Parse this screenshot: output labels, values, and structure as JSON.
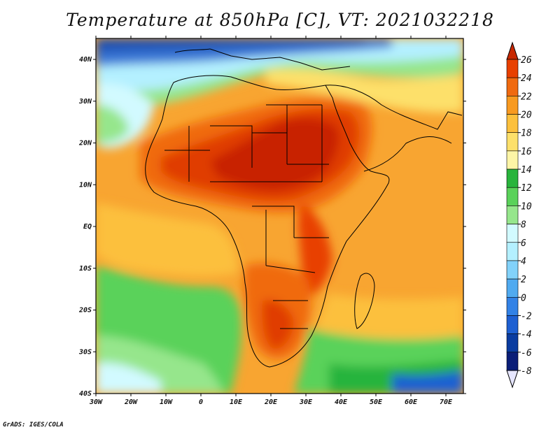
{
  "title": "Temperature at 850hPa [C], VT: 2021032218",
  "credit": "GrADS: IGES/COLA",
  "map": {
    "lon_labels": [
      "30W",
      "20W",
      "10W",
      "0",
      "10E",
      "20E",
      "30E",
      "40E",
      "50E",
      "60E",
      "70E"
    ],
    "lat_labels": [
      "40N",
      "30N",
      "20N",
      "10N",
      "EQ",
      "10S",
      "20S",
      "30S",
      "40S"
    ]
  },
  "colorbar": {
    "labels": [
      "26",
      "24",
      "22",
      "20",
      "18",
      "16",
      "14",
      "12",
      "10",
      "8",
      "6",
      "4",
      "2",
      "0",
      "-2",
      "-4",
      "-6",
      "-8"
    ],
    "colors": [
      "#c82800",
      "#e84000",
      "#f06a10",
      "#f89a20",
      "#fcc03c",
      "#fde06a",
      "#fdf5a6",
      "#28b43c",
      "#5ad25a",
      "#96e68c",
      "#d2faff",
      "#b4f0ff",
      "#82d2fa",
      "#50aaf0",
      "#3282e6",
      "#1e60d2",
      "#0a3ca0",
      "#0a1e78"
    ]
  }
}
